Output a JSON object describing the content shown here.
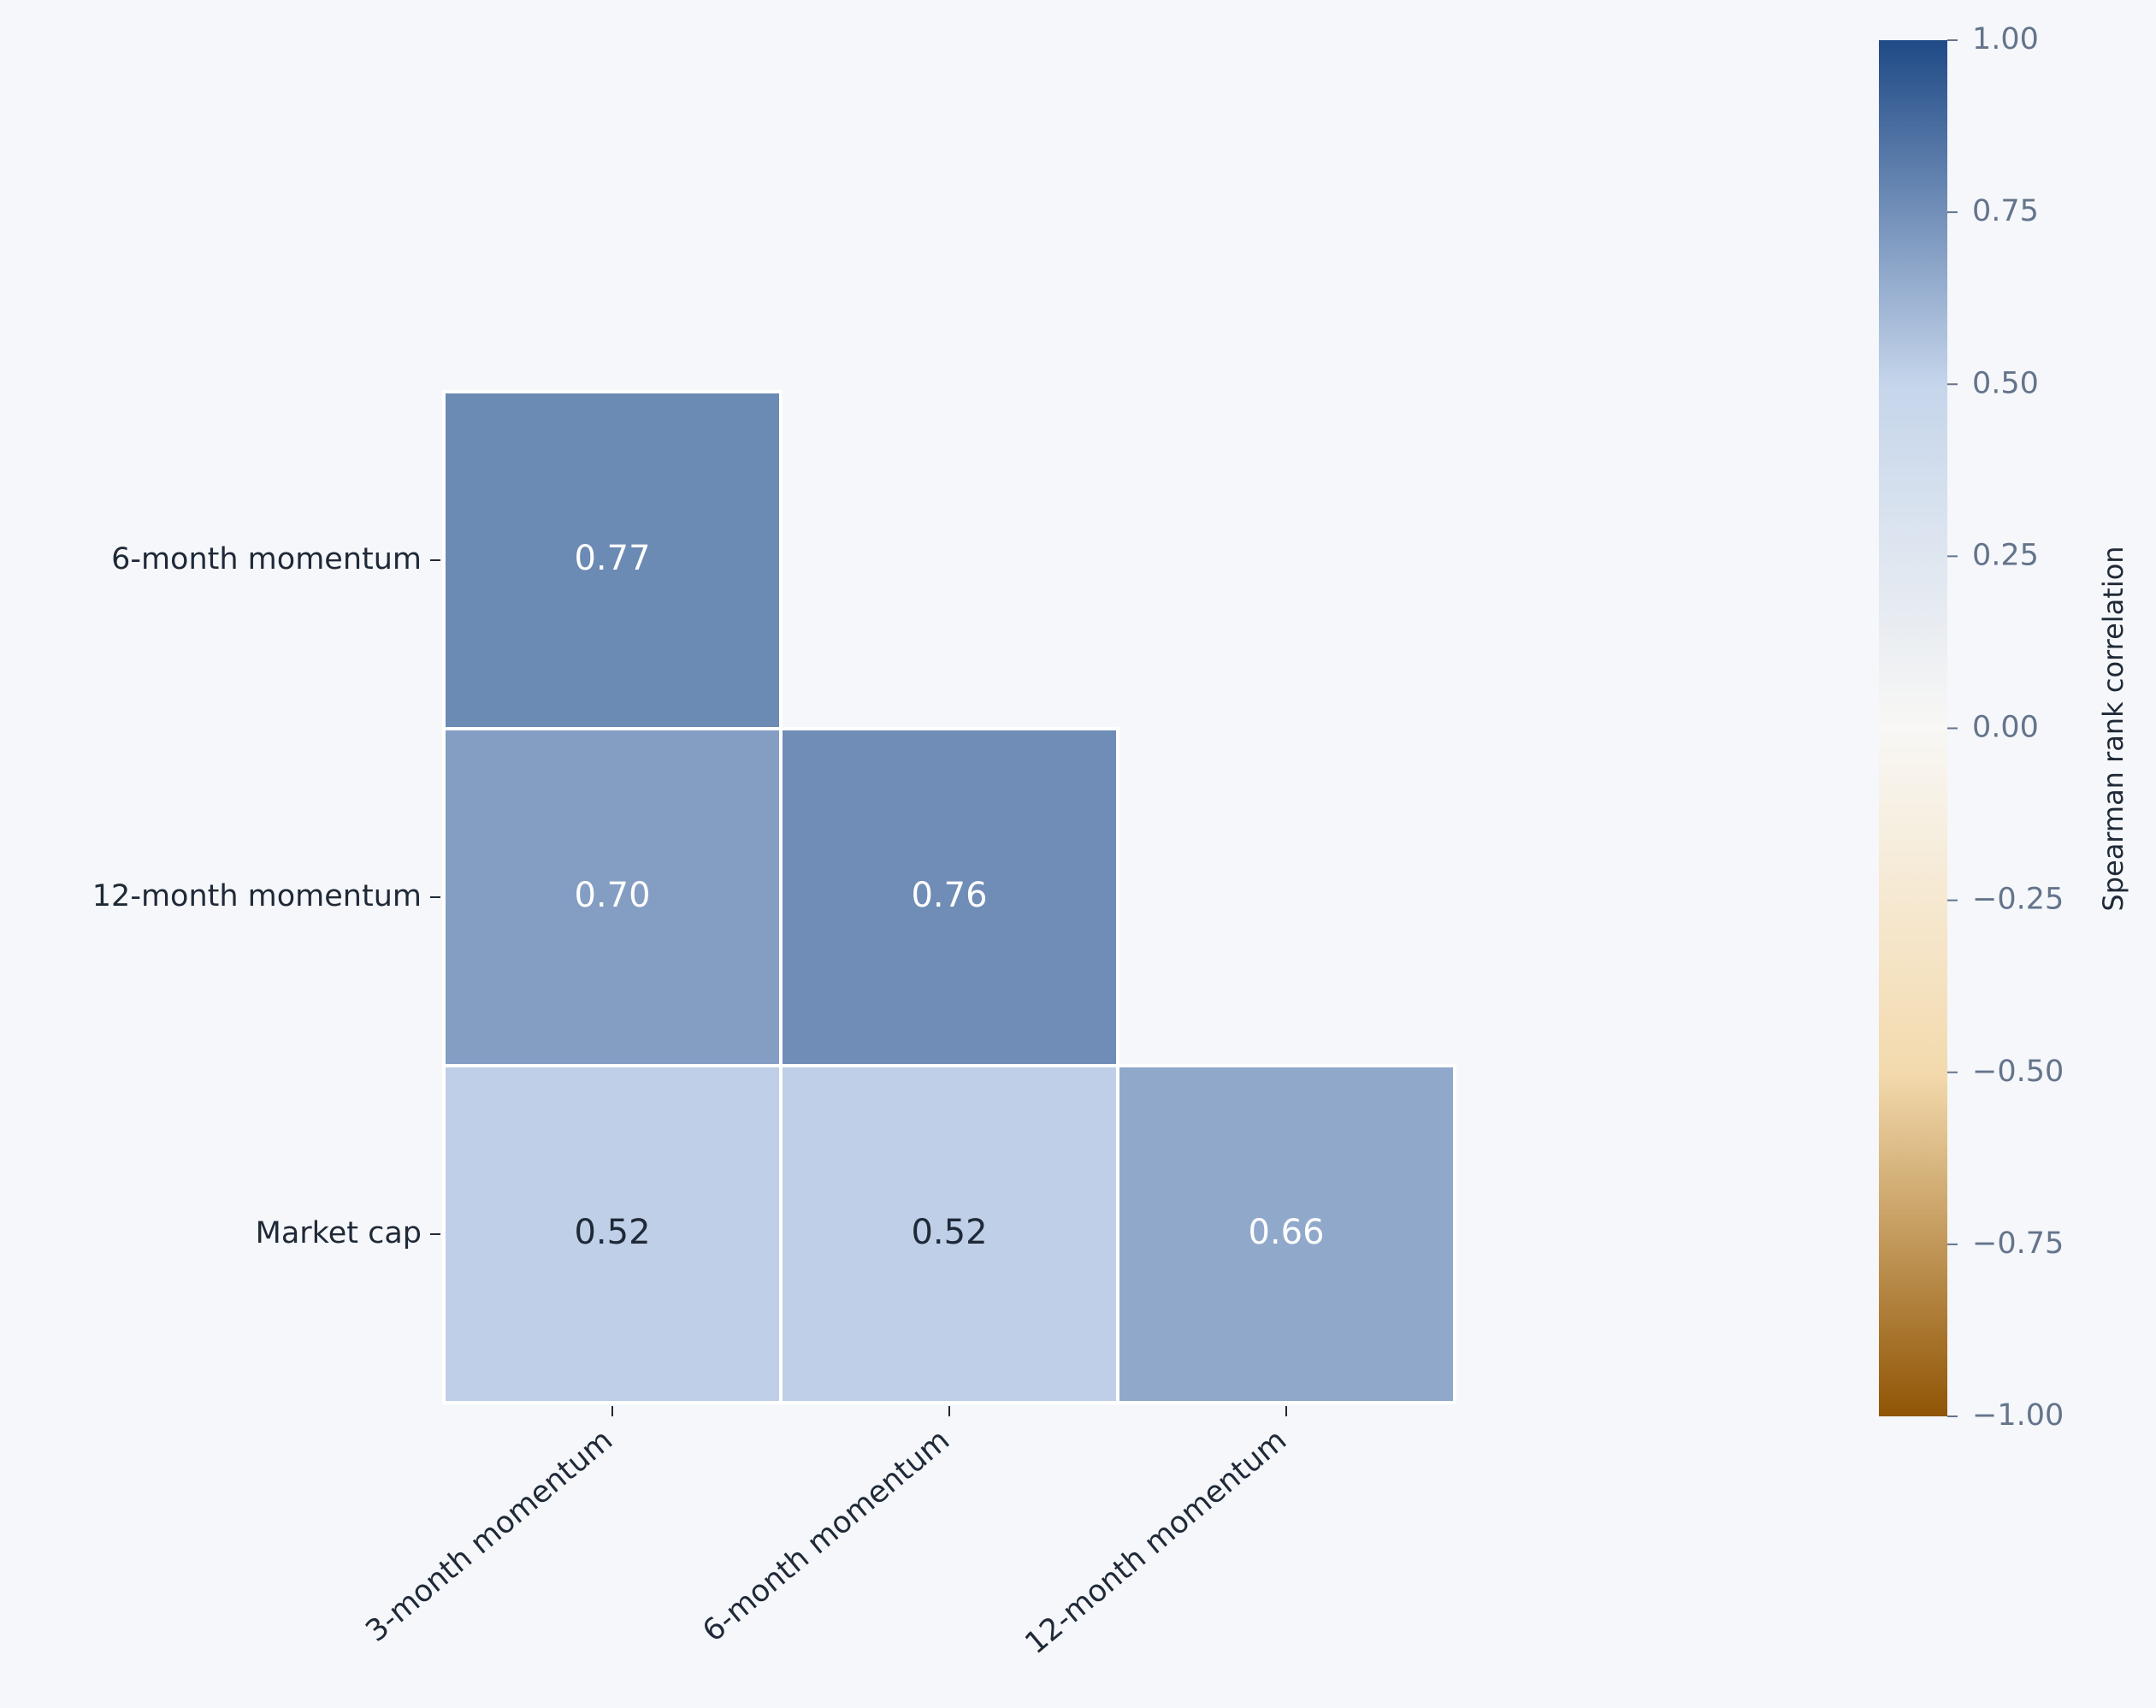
{
  "chart_data": {
    "type": "heatmap",
    "rows": [
      "6-month momentum",
      "12-month momentum",
      "Market cap"
    ],
    "columns": [
      "3-month momentum",
      "6-month momentum",
      "12-month momentum"
    ],
    "values": [
      [
        0.77,
        null,
        null
      ],
      [
        0.7,
        0.76,
        null
      ],
      [
        0.52,
        0.52,
        0.66
      ]
    ],
    "value_labels": [
      [
        "0.77",
        null,
        null
      ],
      [
        "0.70",
        "0.76",
        null
      ],
      [
        "0.52",
        "0.52",
        "0.66"
      ]
    ],
    "colorbar_label": "Spearman rank correlation",
    "ylim": [
      -1,
      1
    ],
    "yticks": [
      {
        "value": 1,
        "label": "1.00"
      },
      {
        "value": 0.75,
        "label": "0.75"
      },
      {
        "value": 0.5,
        "label": "0.50"
      },
      {
        "value": 0.25,
        "label": "0.25"
      },
      {
        "value": 0,
        "label": "0.00"
      },
      {
        "value": -0.25,
        "label": "−0.25"
      },
      {
        "value": -0.5,
        "label": "−0.50"
      },
      {
        "value": -0.75,
        "label": "−0.75"
      },
      {
        "value": -1,
        "label": "−1.00"
      }
    ],
    "colormap": [
      "#905505",
      "#f3daad",
      "#f8f7f5",
      "#c5d5eb",
      "#1f4a86"
    ]
  }
}
